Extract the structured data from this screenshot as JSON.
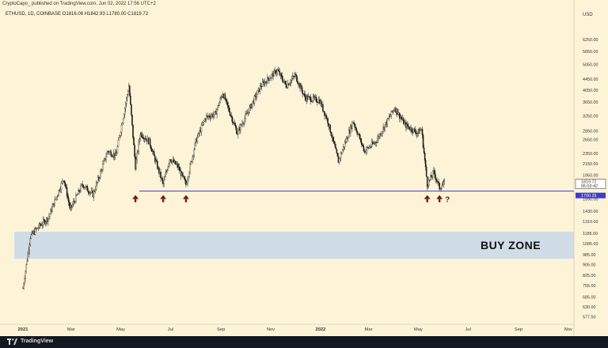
{
  "header": {
    "published_line": "CryptoCapo_ published on TradingView.com, Jun 02, 2022 17:56 UTC+2",
    "symbol_line": "ETHUSD, 1D, COINBASE  O1816.06  H1842.93  L1780.00  C1819.72"
  },
  "footer": {
    "brand": "TradingView",
    "logo_icon": "tradingview-logo-icon"
  },
  "chart_data": {
    "type": "candlestick",
    "currency_label": "USD",
    "y_scale": "log",
    "y_ticks": [
      "6250.00",
      "5650.00",
      "5050.00",
      "4450.00",
      "4050.00",
      "3650.00",
      "3250.00",
      "2850.00",
      "2650.00",
      "2350.00",
      "2150.00",
      "1950.00",
      "1590.00",
      "1430.00",
      "1310.00",
      "1185.00",
      "1085.00",
      "985.00",
      "905.00",
      "825.00",
      "755.00",
      "685.00",
      "630.00",
      "577.50"
    ],
    "x_ticks": [
      {
        "label": "2021",
        "bold": true
      },
      {
        "label": "Mar",
        "bold": false
      },
      {
        "label": "May",
        "bold": false
      },
      {
        "label": "Jul",
        "bold": false
      },
      {
        "label": "Sep",
        "bold": false
      },
      {
        "label": "Nov",
        "bold": false
      },
      {
        "label": "2022",
        "bold": true
      },
      {
        "label": "Mar",
        "bold": false
      },
      {
        "label": "May",
        "bold": false
      },
      {
        "label": "Jul",
        "bold": false
      },
      {
        "label": "Sep",
        "bold": false
      },
      {
        "label": "Nov",
        "bold": false
      }
    ],
    "price_path": [
      [
        "2021-01-01",
        740
      ],
      [
        "2021-01-10",
        1150
      ],
      [
        "2021-01-20",
        1250
      ],
      [
        "2021-02-01",
        1350
      ],
      [
        "2021-02-20",
        1900
      ],
      [
        "2021-02-28",
        1450
      ],
      [
        "2021-03-15",
        1800
      ],
      [
        "2021-03-28",
        1650
      ],
      [
        "2021-04-15",
        2400
      ],
      [
        "2021-04-25",
        2300
      ],
      [
        "2021-05-11",
        4200
      ],
      [
        "2021-05-19",
        2100
      ],
      [
        "2021-05-25",
        2800
      ],
      [
        "2021-06-05",
        2600
      ],
      [
        "2021-06-22",
        1800
      ],
      [
        "2021-06-30",
        2250
      ],
      [
        "2021-07-10",
        2100
      ],
      [
        "2021-07-20",
        1800
      ],
      [
        "2021-08-01",
        2600
      ],
      [
        "2021-08-13",
        3200
      ],
      [
        "2021-08-25",
        3300
      ],
      [
        "2021-09-03",
        3950
      ],
      [
        "2021-09-21",
        2800
      ],
      [
        "2021-10-05",
        3400
      ],
      [
        "2021-10-20",
        4200
      ],
      [
        "2021-11-09",
        4800
      ],
      [
        "2021-11-20",
        4200
      ],
      [
        "2021-12-01",
        4600
      ],
      [
        "2021-12-13",
        3800
      ],
      [
        "2021-12-31",
        3700
      ],
      [
        "2022-01-10",
        3100
      ],
      [
        "2022-01-23",
        2200
      ],
      [
        "2022-02-10",
        3100
      ],
      [
        "2022-02-24",
        2400
      ],
      [
        "2022-03-10",
        2600
      ],
      [
        "2022-04-02",
        3480
      ],
      [
        "2022-04-15",
        3000
      ],
      [
        "2022-04-30",
        2800
      ],
      [
        "2022-05-05",
        2900
      ],
      [
        "2022-05-12",
        1800
      ],
      [
        "2022-05-20",
        2000
      ],
      [
        "2022-05-27",
        1750
      ],
      [
        "2022-06-02",
        1819.72
      ]
    ],
    "last_price_tag": {
      "price": "1819.72",
      "countdown": "05:03:42"
    },
    "support_level": {
      "price": 1700,
      "tag": "1700.25",
      "color": "#3b3bd0"
    },
    "buy_zone": {
      "low": 950,
      "high": 1200,
      "label": "BUY ZONE",
      "color": "#d0dde7"
    },
    "support_touch_arrows": [
      {
        "date": "2021-05-19"
      },
      {
        "date": "2021-06-22"
      },
      {
        "date": "2021-07-20"
      },
      {
        "date": "2022-05-12"
      },
      {
        "date": "2022-05-27"
      }
    ],
    "question_mark": "?",
    "colors": {
      "background": "#fdf4d8",
      "candles": "#1a1a1a",
      "arrows": "#7a1414"
    }
  }
}
